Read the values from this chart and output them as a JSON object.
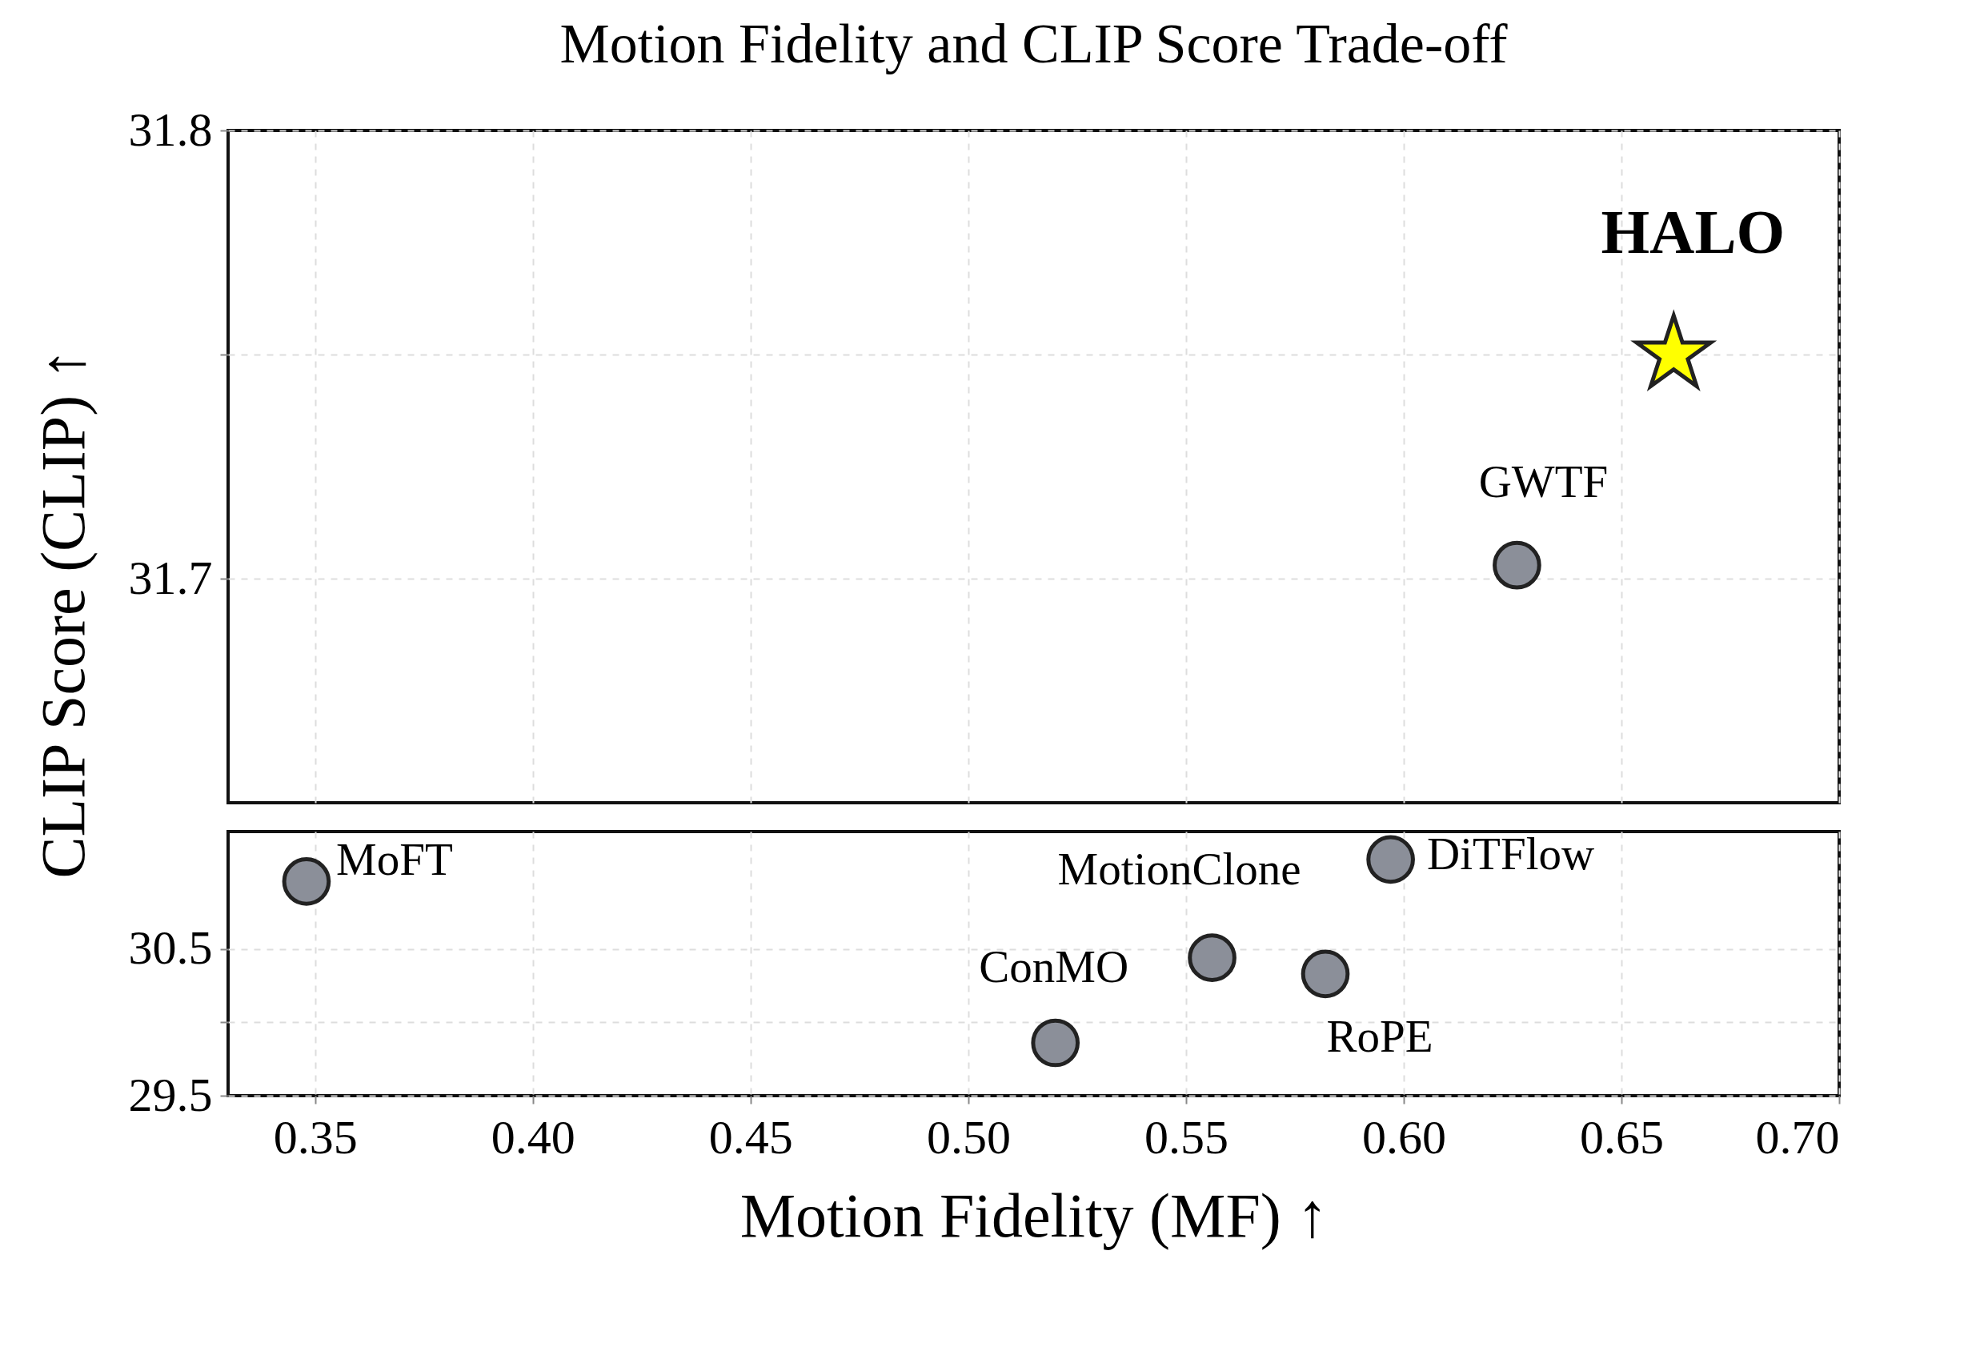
{
  "chart_data": [
    {
      "type": "scatter",
      "title": "Motion Fidelity and CLIP Score Trade-off",
      "ylabel": "CLIP Score (CLIP) ↑",
      "xlim": [
        0.33,
        0.7
      ],
      "xticks": [
        0.35,
        0.4,
        0.45,
        0.5,
        0.55,
        0.6,
        0.65,
        0.7
      ],
      "ylim": [
        31.65,
        31.8
      ],
      "yticks": [
        31.7,
        {
          "value": 31.75,
          "label": null
        },
        31.8
      ],
      "tick_labels": "y",
      "grid": true,
      "legend": false,
      "series": [
        {
          "name": "HALO",
          "color": "#ffff00",
          "marker": "star",
          "x": [
            0.662
          ],
          "values": [
            31.75
          ]
        },
        {
          "name": "GWTF",
          "color": "#8b8f99",
          "marker": "circle",
          "x": [
            0.626
          ],
          "values": [
            31.703
          ]
        }
      ]
    },
    {
      "type": "scatter",
      "xlabel": "Motion Fidelity (MF) ↑",
      "xlim": [
        0.33,
        0.7
      ],
      "xticks": [
        {
          "value": 0.35,
          "label": "0.35"
        },
        {
          "value": 0.4,
          "label": "0.40"
        },
        {
          "value": 0.45,
          "label": "0.45"
        },
        {
          "value": 0.5,
          "label": "0.50"
        },
        {
          "value": 0.55,
          "label": "0.55"
        },
        {
          "value": 0.6,
          "label": "0.60"
        },
        {
          "value": 0.65,
          "label": "0.65"
        },
        {
          "value": 0.7,
          "label": "0.70"
        }
      ],
      "ylim": [
        29.5,
        31.3
      ],
      "yticks": [
        29.5,
        {
          "value": 30.0,
          "label": null
        },
        30.5
      ],
      "grid": true,
      "legend": false,
      "series": [
        {
          "name": "DiTFlow",
          "color": "#8b8f99",
          "marker": "circle",
          "x": [
            0.597
          ],
          "values": [
            31.11
          ]
        },
        {
          "name": "MoFT",
          "color": "#8b8f99",
          "marker": "circle",
          "x": [
            0.348
          ],
          "values": [
            30.96
          ]
        },
        {
          "name": "MotionClone",
          "color": "#8b8f99",
          "marker": "circle",
          "x": [
            0.556
          ],
          "values": [
            30.44
          ]
        },
        {
          "name": "RoPE",
          "color": "#8b8f99",
          "marker": "circle",
          "x": [
            0.582
          ],
          "values": [
            30.33
          ]
        },
        {
          "name": "ConMO",
          "color": "#8b8f99",
          "marker": "circle",
          "x": [
            0.52
          ],
          "values": [
            29.86
          ]
        }
      ]
    }
  ]
}
